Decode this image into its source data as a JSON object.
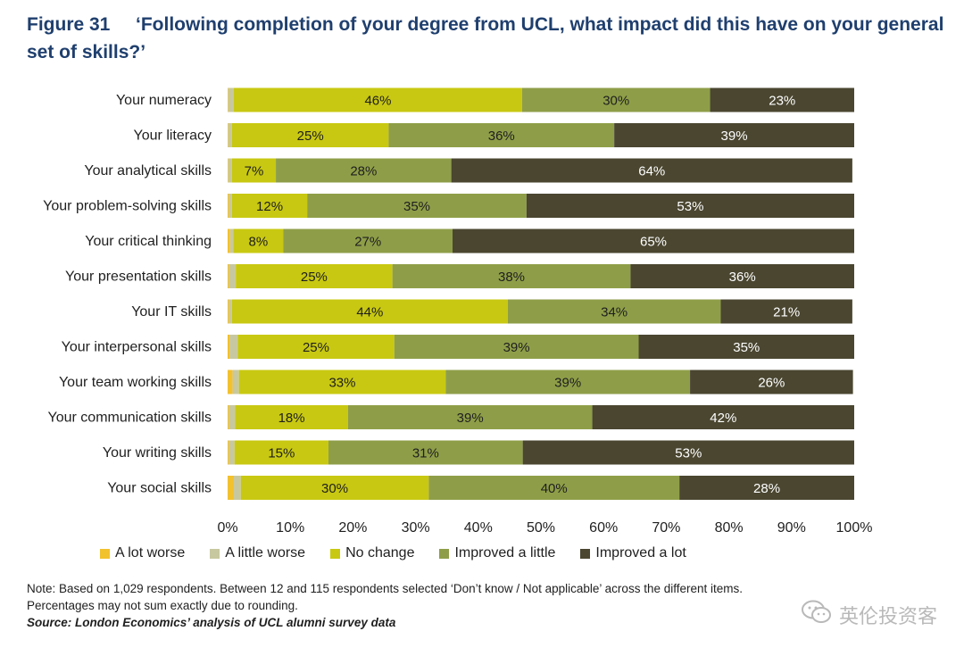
{
  "figure": {
    "number": "Figure 31",
    "title": "‘Following completion of your degree from UCL, what impact did this have on your general set of skills?’"
  },
  "chart_data": {
    "type": "bar",
    "orientation": "horizontal",
    "stacked": true,
    "categories": [
      "Your numeracy",
      "Your literacy",
      "Your analytical skills",
      "Your problem-solving skills",
      "Your critical thinking",
      "Your presentation skills",
      "Your IT skills",
      "Your interpersonal skills",
      "Your team working skills",
      "Your communication skills",
      "Your writing skills",
      "Your social skills"
    ],
    "series": [
      {
        "name": "A lot worse",
        "color": "#f2c12e",
        "values": [
          0.1,
          0.1,
          0.1,
          0.2,
          0.4,
          0.2,
          0.2,
          0.3,
          0.8,
          0.2,
          0.2,
          1.0
        ],
        "labels": [
          "",
          "",
          "",
          "",
          "",
          "",
          "",
          "",
          "",
          "",
          "",
          ""
        ]
      },
      {
        "name": "A little worse",
        "color": "#c8c8a0",
        "values": [
          0.9,
          0.6,
          0.6,
          0.5,
          0.5,
          1.1,
          0.5,
          1.3,
          1.0,
          1.0,
          0.9,
          1.1
        ],
        "labels": [
          "",
          "",
          "",
          "",
          "",
          "",
          "",
          "",
          "",
          "",
          "",
          ""
        ]
      },
      {
        "name": "No change",
        "color": "#c8c812",
        "values": [
          46,
          25,
          7,
          12,
          8,
          25,
          44,
          25,
          33,
          18,
          15,
          30
        ],
        "labels": [
          "46%",
          "25%",
          "7%",
          "12%",
          "8%",
          "25%",
          "44%",
          "25%",
          "33%",
          "18%",
          "15%",
          "30%"
        ]
      },
      {
        "name": "Improved a little",
        "color": "#8e9e48",
        "values": [
          30,
          36,
          28,
          35,
          27,
          38,
          34,
          39,
          39,
          39,
          31,
          40
        ],
        "labels": [
          "30%",
          "36%",
          "28%",
          "35%",
          "27%",
          "38%",
          "34%",
          "39%",
          "39%",
          "39%",
          "31%",
          "40%"
        ]
      },
      {
        "name": "Improved a lot",
        "color": "#4a4630",
        "values": [
          23,
          39,
          64,
          53,
          65,
          36,
          21,
          35,
          26,
          42,
          53,
          28
        ],
        "labels": [
          "23%",
          "39%",
          "64%",
          "53%",
          "65%",
          "36%",
          "21%",
          "35%",
          "26%",
          "42%",
          "53%",
          "28%"
        ]
      }
    ],
    "xlim": [
      0,
      100
    ],
    "x_ticks": [
      "0%",
      "10%",
      "20%",
      "30%",
      "40%",
      "50%",
      "60%",
      "70%",
      "80%",
      "90%",
      "100%"
    ],
    "grid": false,
    "legend_position": "bottom"
  },
  "notes": {
    "line1": "Note: Based on 1,029 respondents. Between 12 and 115 respondents selected ‘Don’t know / Not applicable’ across the different items.",
    "line2": "Percentages may not sum exactly due to rounding.",
    "source": "Source: London Economics’ analysis of UCL alumni survey data"
  },
  "watermark": {
    "text": "英伦投资客"
  }
}
